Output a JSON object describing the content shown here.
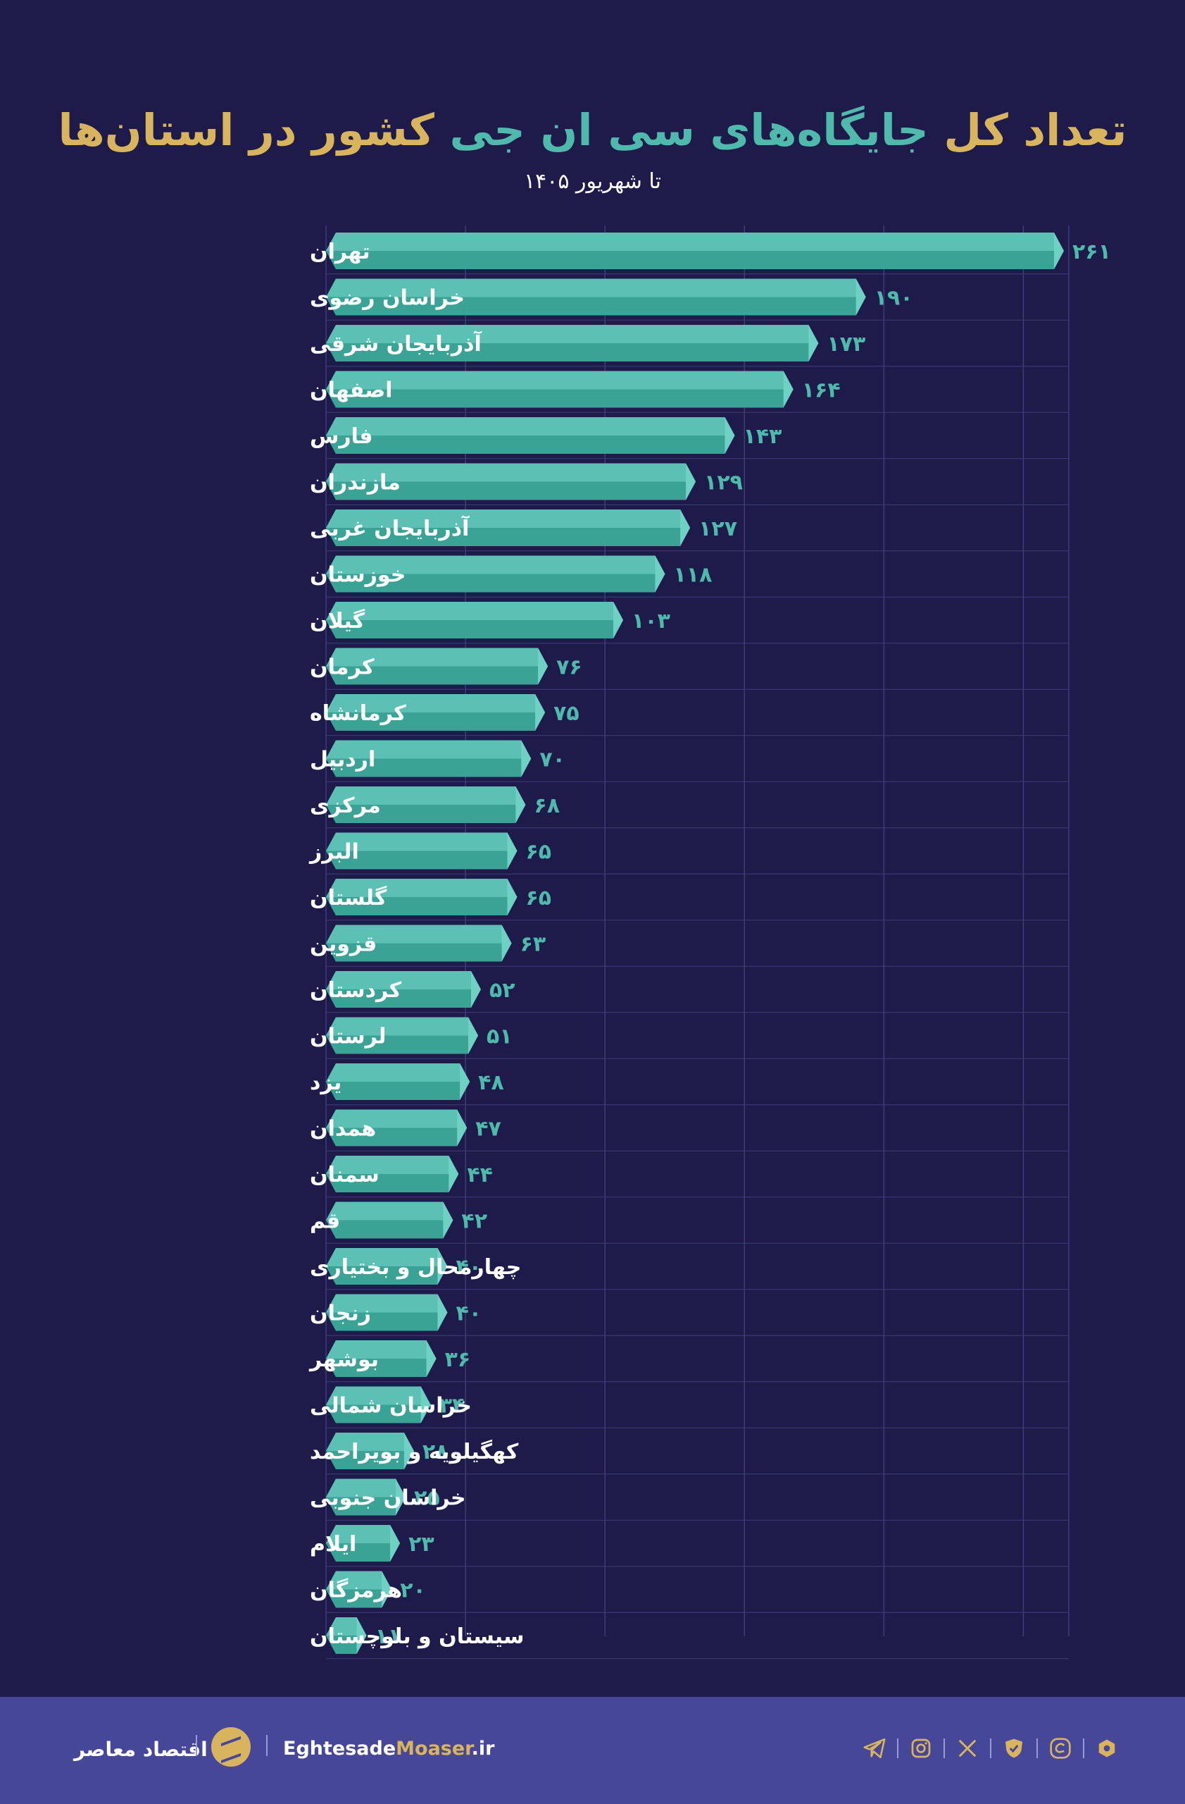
{
  "title": {
    "part1": "تعداد کل",
    "part2": "جایگاه‌های سی ان جی",
    "part3": "کشور در استان‌ها"
  },
  "subtitle": "تا شهریور ۱۴۰۵",
  "chart_data": {
    "type": "bar",
    "orientation": "horizontal",
    "categories": [
      "تهران",
      "خراسان رضوی",
      "آذربایجان شرقی",
      "اصفهان",
      "فارس",
      "مازندران",
      "آذربایجان غربی",
      "خوزستان",
      "گیلان",
      "کرمان",
      "کرمانشاه",
      "اردبیل",
      "مرکزی",
      "البرز",
      "گلستان",
      "قزوین",
      "کردستان",
      "لرستان",
      "یزد",
      "همدان",
      "سمنان",
      "قم",
      "چهارمحال و بختیاری",
      "زنجان",
      "بوشهر",
      "خراسان شمالی",
      "کهگیلویه و بویراحمد",
      "خراسان جنوبی",
      "ایلام",
      "هرمزگان",
      "سیستان و بلوچستان"
    ],
    "values": [
      261,
      190,
      173,
      164,
      143,
      129,
      127,
      118,
      103,
      76,
      75,
      70,
      68,
      65,
      65,
      63,
      52,
      51,
      48,
      47,
      44,
      42,
      40,
      40,
      36,
      34,
      28,
      25,
      23,
      20,
      11
    ],
    "value_labels": [
      "۲۶۱",
      "۱۹۰",
      "۱۷۳",
      "۱۶۴",
      "۱۴۳",
      "۱۲۹",
      "۱۲۷",
      "۱۱۸",
      "۱۰۳",
      "۷۶",
      "۷۵",
      "۷۰",
      "۶۸",
      "۶۵",
      "۶۵",
      "۶۳",
      "۵۲",
      "۵۱",
      "۴۸",
      "۴۷",
      "۴۴",
      "۴۲",
      "۴۰",
      "۴۰",
      "۳۶",
      "۳۴",
      "۲۸",
      "۲۵",
      "۲۳",
      "۲۰",
      "۱۱"
    ],
    "xlim": [
      0,
      270
    ],
    "grid": true,
    "bar_color": "#3aa396",
    "bar_highlight": "#5cc1b4",
    "value_label_color": "#4fb9ab"
  },
  "footer": {
    "brand_fa": "اقتصاد معاصر",
    "site_part1": "Eghtesade",
    "site_part2": "Moaser",
    "site_part3": ".ir",
    "icons": [
      "telegram-icon",
      "instagram-icon",
      "x-icon",
      "shield-icon",
      "eitaa-icon",
      "bale-icon"
    ]
  },
  "colors": {
    "background": "#1e1b4b",
    "footer": "#47479a",
    "gold": "#d9b45f",
    "teal": "#4fb9ab"
  }
}
